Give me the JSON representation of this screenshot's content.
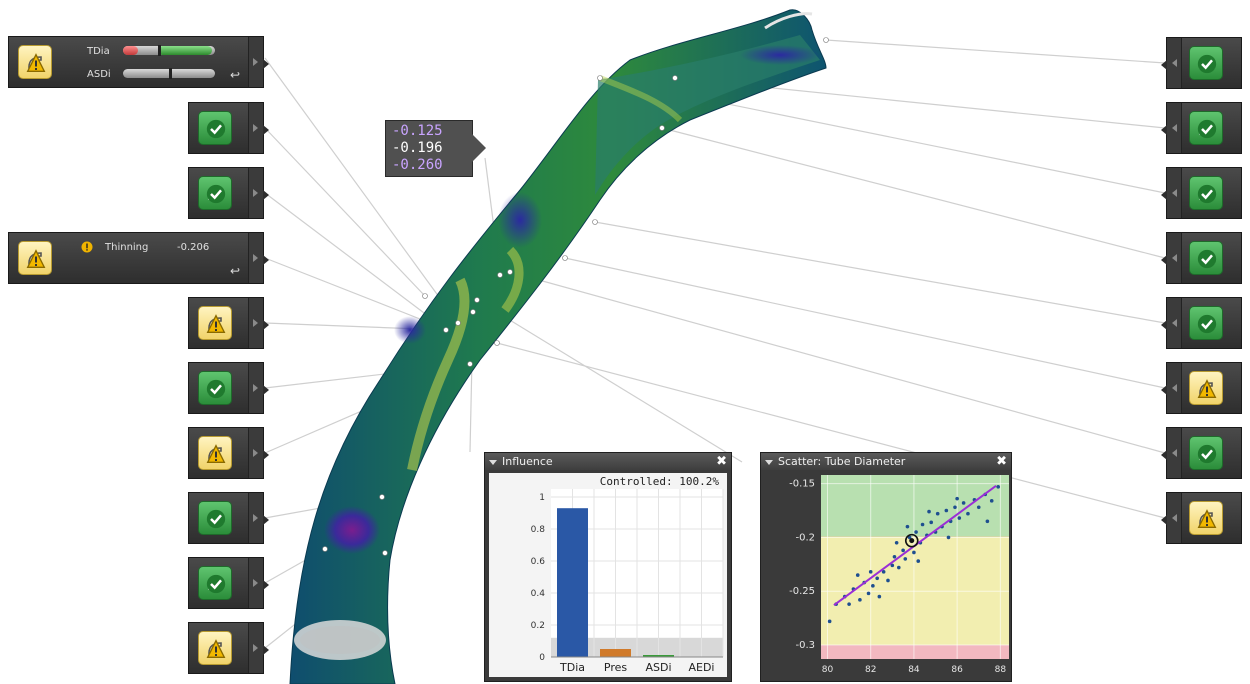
{
  "callout": {
    "values": [
      "-0.125",
      "-0.196",
      "-0.260"
    ]
  },
  "left_nodes": [
    {
      "icon": "part-icon",
      "status": "warning",
      "rows": [
        {
          "label": "TDia",
          "level": 0.38,
          "fill": "red",
          "secondary_fill": "green"
        },
        {
          "label": "ASDi",
          "level": 0.5
        }
      ],
      "has_undo": true
    },
    {
      "icon": "gauge-icon",
      "status": "ok"
    },
    {
      "icon": "part-icon",
      "status": "ok"
    },
    {
      "icon": "part-icon",
      "status": "warning",
      "alert": true,
      "label": "Thinning",
      "value": "-0.206",
      "has_undo": true
    },
    {
      "icon": "part-icon",
      "status": "warning"
    },
    {
      "icon": "gauge-icon",
      "status": "ok"
    },
    {
      "icon": "part-icon",
      "status": "warning"
    },
    {
      "icon": "gauge-icon",
      "status": "ok"
    },
    {
      "icon": "part-icon",
      "status": "ok"
    },
    {
      "icon": "part-icon",
      "status": "warning"
    }
  ],
  "right_nodes": [
    {
      "icon": "gauge-icon",
      "status": "ok"
    },
    {
      "icon": "part-icon",
      "status": "ok"
    },
    {
      "icon": "part-icon",
      "status": "ok"
    },
    {
      "icon": "gauge-icon",
      "status": "ok"
    },
    {
      "icon": "gauge-icon",
      "status": "ok"
    },
    {
      "icon": "part-icon",
      "status": "warning"
    },
    {
      "icon": "part-icon",
      "status": "ok"
    },
    {
      "icon": "part-icon",
      "status": "warning"
    }
  ],
  "influence_panel": {
    "title": "Influence",
    "close": "✖",
    "controlled": "Controlled: 100.2%"
  },
  "scatter_panel": {
    "title": "Scatter: Tube Diameter",
    "close": "✖"
  },
  "chart_data": [
    {
      "type": "bar",
      "title": "Influence",
      "annotation": "Controlled: 100.2%",
      "categories": [
        "TDia",
        "Pres",
        "ASDi",
        "AEDi"
      ],
      "values": [
        0.93,
        0.05,
        0.01,
        0.0
      ],
      "bar_colors": [
        "#2a58a6",
        "#d07a2a",
        "#3a9a3a",
        "#888888"
      ],
      "yticks": [
        0,
        0.2,
        0.4,
        0.6,
        0.8,
        1
      ],
      "ylim": [
        0,
        1.05
      ],
      "grid": true,
      "band_below": 0.12
    },
    {
      "type": "scatter",
      "title": "Scatter: Tube Diameter",
      "xlim": [
        79.7,
        88.4
      ],
      "ylim": [
        -0.313,
        -0.142
      ],
      "xticks": [
        80,
        82,
        84,
        86,
        88
      ],
      "yticks": [
        -0.15,
        -0.2,
        -0.25,
        -0.3
      ],
      "bands": [
        {
          "from": -0.142,
          "to": -0.199,
          "color": "#b8e0b0"
        },
        {
          "from": -0.199,
          "to": -0.3,
          "color": "#f2eeb0"
        },
        {
          "from": -0.3,
          "to": -0.313,
          "color": "#f2b8c0"
        }
      ],
      "trend": {
        "x": [
          80.3,
          87.8
        ],
        "y": [
          -0.263,
          -0.152
        ]
      },
      "highlight": {
        "x": 83.9,
        "y": -0.203
      },
      "points": [
        [
          80.1,
          -0.278
        ],
        [
          80.4,
          -0.262
        ],
        [
          80.8,
          -0.255
        ],
        [
          81.0,
          -0.262
        ],
        [
          81.2,
          -0.248
        ],
        [
          81.5,
          -0.258
        ],
        [
          81.7,
          -0.242
        ],
        [
          81.9,
          -0.252
        ],
        [
          82.1,
          -0.245
        ],
        [
          82.3,
          -0.238
        ],
        [
          82.4,
          -0.255
        ],
        [
          82.6,
          -0.232
        ],
        [
          82.8,
          -0.24
        ],
        [
          83.0,
          -0.226
        ],
        [
          83.1,
          -0.218
        ],
        [
          83.3,
          -0.228
        ],
        [
          83.5,
          -0.212
        ],
        [
          83.6,
          -0.22
        ],
        [
          83.8,
          -0.2
        ],
        [
          84.0,
          -0.214
        ],
        [
          84.1,
          -0.195
        ],
        [
          84.3,
          -0.205
        ],
        [
          84.4,
          -0.188
        ],
        [
          84.6,
          -0.198
        ],
        [
          84.8,
          -0.186
        ],
        [
          85.0,
          -0.195
        ],
        [
          85.1,
          -0.178
        ],
        [
          85.3,
          -0.19
        ],
        [
          85.5,
          -0.175
        ],
        [
          85.7,
          -0.185
        ],
        [
          85.9,
          -0.172
        ],
        [
          86.1,
          -0.182
        ],
        [
          86.3,
          -0.168
        ],
        [
          86.5,
          -0.178
        ],
        [
          86.8,
          -0.165
        ],
        [
          87.0,
          -0.172
        ],
        [
          87.3,
          -0.16
        ],
        [
          87.6,
          -0.166
        ],
        [
          87.9,
          -0.153
        ],
        [
          83.2,
          -0.205
        ],
        [
          84.2,
          -0.222
        ],
        [
          85.6,
          -0.2
        ],
        [
          82.0,
          -0.232
        ],
        [
          86.0,
          -0.164
        ],
        [
          84.7,
          -0.176
        ],
        [
          87.4,
          -0.185
        ],
        [
          81.4,
          -0.235
        ],
        [
          83.7,
          -0.19
        ]
      ]
    }
  ]
}
